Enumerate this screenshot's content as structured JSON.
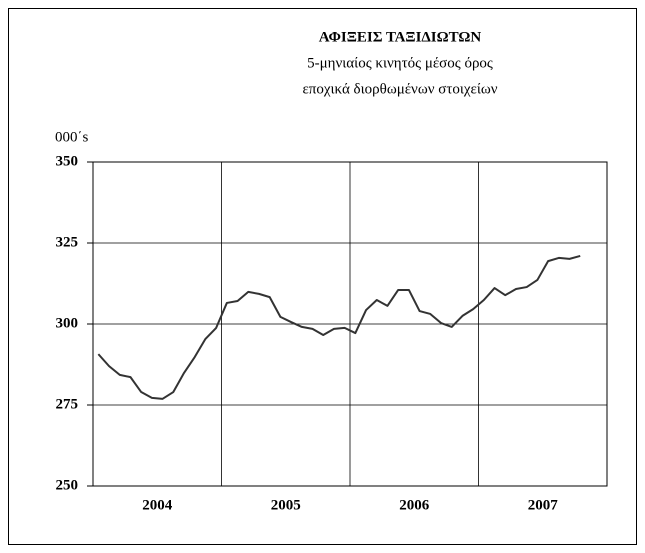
{
  "chart_data": {
    "type": "line",
    "title": "ΑΦΙΞΕΙΣ ΤΑΞΙΔΙΩΤΩΝ",
    "subtitle": [
      "5-μηνιαίος κινητός μέσος όρος",
      "εποχικά διορθωμένων στοιχείων"
    ],
    "y_unit": "000΄s",
    "categories": [
      "2004",
      null,
      null,
      null,
      null,
      null,
      null,
      null,
      null,
      null,
      null,
      null,
      "2005",
      null,
      null,
      null,
      null,
      null,
      null,
      null,
      null,
      null,
      null,
      null,
      "2006",
      null,
      null,
      null,
      null,
      null,
      null,
      null,
      null,
      null,
      null,
      null,
      "2007",
      null,
      null,
      null,
      null,
      null,
      null,
      null,
      null,
      null,
      null,
      null
    ],
    "series": [
      {
        "color": "#333333",
        "values": [
          290.7,
          287,
          284.3,
          283.6,
          279,
          277.2,
          276.9,
          279,
          284.9,
          289.8,
          295.4,
          298.8,
          306.5,
          307.1,
          309.9,
          309.3,
          308.3,
          302.2,
          300.6,
          299.1,
          298.5,
          296.6,
          298.5,
          298.8,
          297.2,
          304.3,
          307.4,
          305.6,
          310.5,
          310.5,
          304,
          303.1,
          300.3,
          299.1,
          302.5,
          304.6,
          307.4,
          311.1,
          308.9,
          310.8,
          311.4,
          313.6,
          319.4,
          320.4,
          320.1,
          321,
          null,
          null
        ]
      }
    ],
    "ylim": [
      250,
      350
    ],
    "yticks": [
      250,
      275,
      300,
      325,
      350
    ],
    "grid": true
  }
}
